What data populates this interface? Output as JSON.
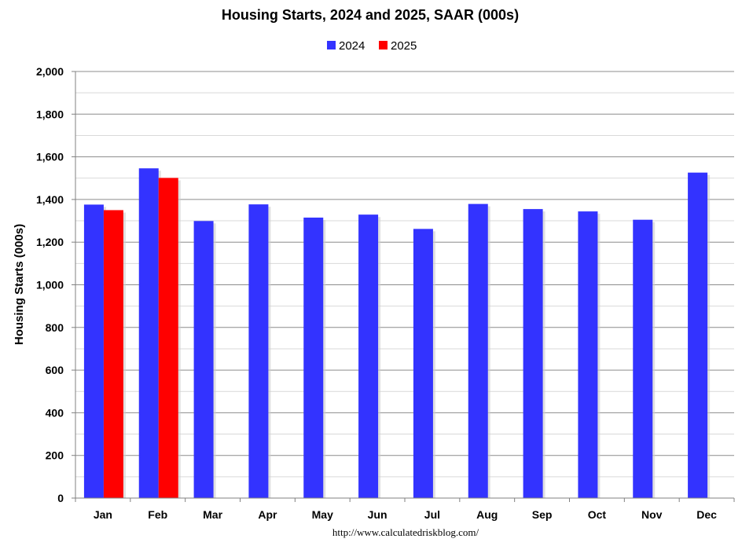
{
  "chart_data": {
    "type": "bar",
    "title": "Housing Starts,  2024 and 2025, SAAR (000s)",
    "ylabel": "Housing Starts (000s)",
    "xlabel": "",
    "source": "http://www.calculatedriskblog.com/",
    "categories": [
      "Jan",
      "Feb",
      "Mar",
      "Apr",
      "May",
      "Jun",
      "Jul",
      "Aug",
      "Sep",
      "Oct",
      "Nov",
      "Dec"
    ],
    "series": [
      {
        "name": "2024",
        "color": "#3333ff",
        "values": [
          1376,
          1546,
          1299,
          1377,
          1315,
          1329,
          1262,
          1379,
          1355,
          1344,
          1305,
          1526
        ]
      },
      {
        "name": "2025",
        "color": "#ff0000",
        "values": [
          1350,
          1501,
          null,
          null,
          null,
          null,
          null,
          null,
          null,
          null,
          null,
          null
        ]
      }
    ],
    "ylim": [
      0,
      2000
    ],
    "yticks": [
      0,
      200,
      400,
      600,
      800,
      1000,
      1200,
      1400,
      1600,
      1800,
      2000
    ],
    "ytick_labels": [
      "0",
      "200",
      "400",
      "600",
      "800",
      "1,000",
      "1,200",
      "1,400",
      "1,600",
      "1,800",
      "2,000"
    ],
    "grid": true,
    "legend_position": "top-center"
  }
}
